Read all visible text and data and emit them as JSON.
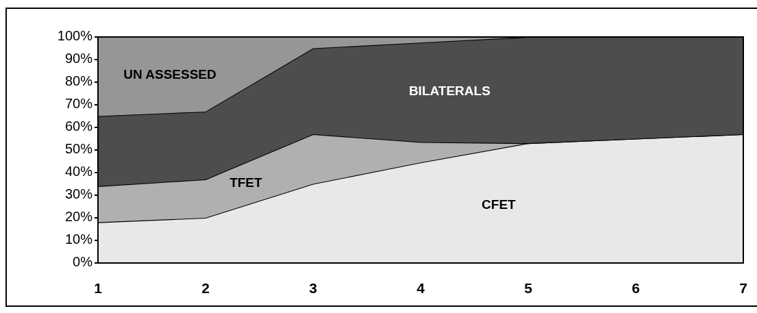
{
  "chart_data": {
    "type": "area",
    "stacked": true,
    "x": [
      1,
      2,
      3,
      4,
      5,
      6,
      7
    ],
    "xlim": [
      1,
      7
    ],
    "xticks": [
      1,
      2,
      3,
      4,
      5,
      6,
      7
    ],
    "ylim": [
      0,
      100
    ],
    "yticks": [
      {
        "value": 0,
        "label": "0%"
      },
      {
        "value": 10,
        "label": "10%"
      },
      {
        "value": 20,
        "label": "20%"
      },
      {
        "value": 30,
        "label": "30%"
      },
      {
        "value": 40,
        "label": "40%"
      },
      {
        "value": 50,
        "label": "50%"
      },
      {
        "value": 60,
        "label": "60%"
      },
      {
        "value": 70,
        "label": "70%"
      },
      {
        "value": 80,
        "label": "80%"
      },
      {
        "value": 90,
        "label": "90%"
      },
      {
        "value": 100,
        "label": "100%"
      }
    ],
    "series": [
      {
        "name": "CFET",
        "color": "#e8e8e8",
        "values": [
          18,
          20,
          35,
          44.5,
          53,
          55,
          57
        ]
      },
      {
        "name": "TFET",
        "color": "#b0b0b0",
        "values": [
          16,
          17,
          22,
          9,
          0,
          0,
          0
        ]
      },
      {
        "name": "BILATERALS",
        "color": "#4d4d4d",
        "values": [
          31,
          30,
          38,
          44,
          47,
          45,
          43
        ]
      },
      {
        "name": "UN ASSESSED",
        "color": "#969696",
        "values": [
          35,
          33,
          5,
          2.5,
          0,
          0,
          0
        ]
      }
    ]
  }
}
